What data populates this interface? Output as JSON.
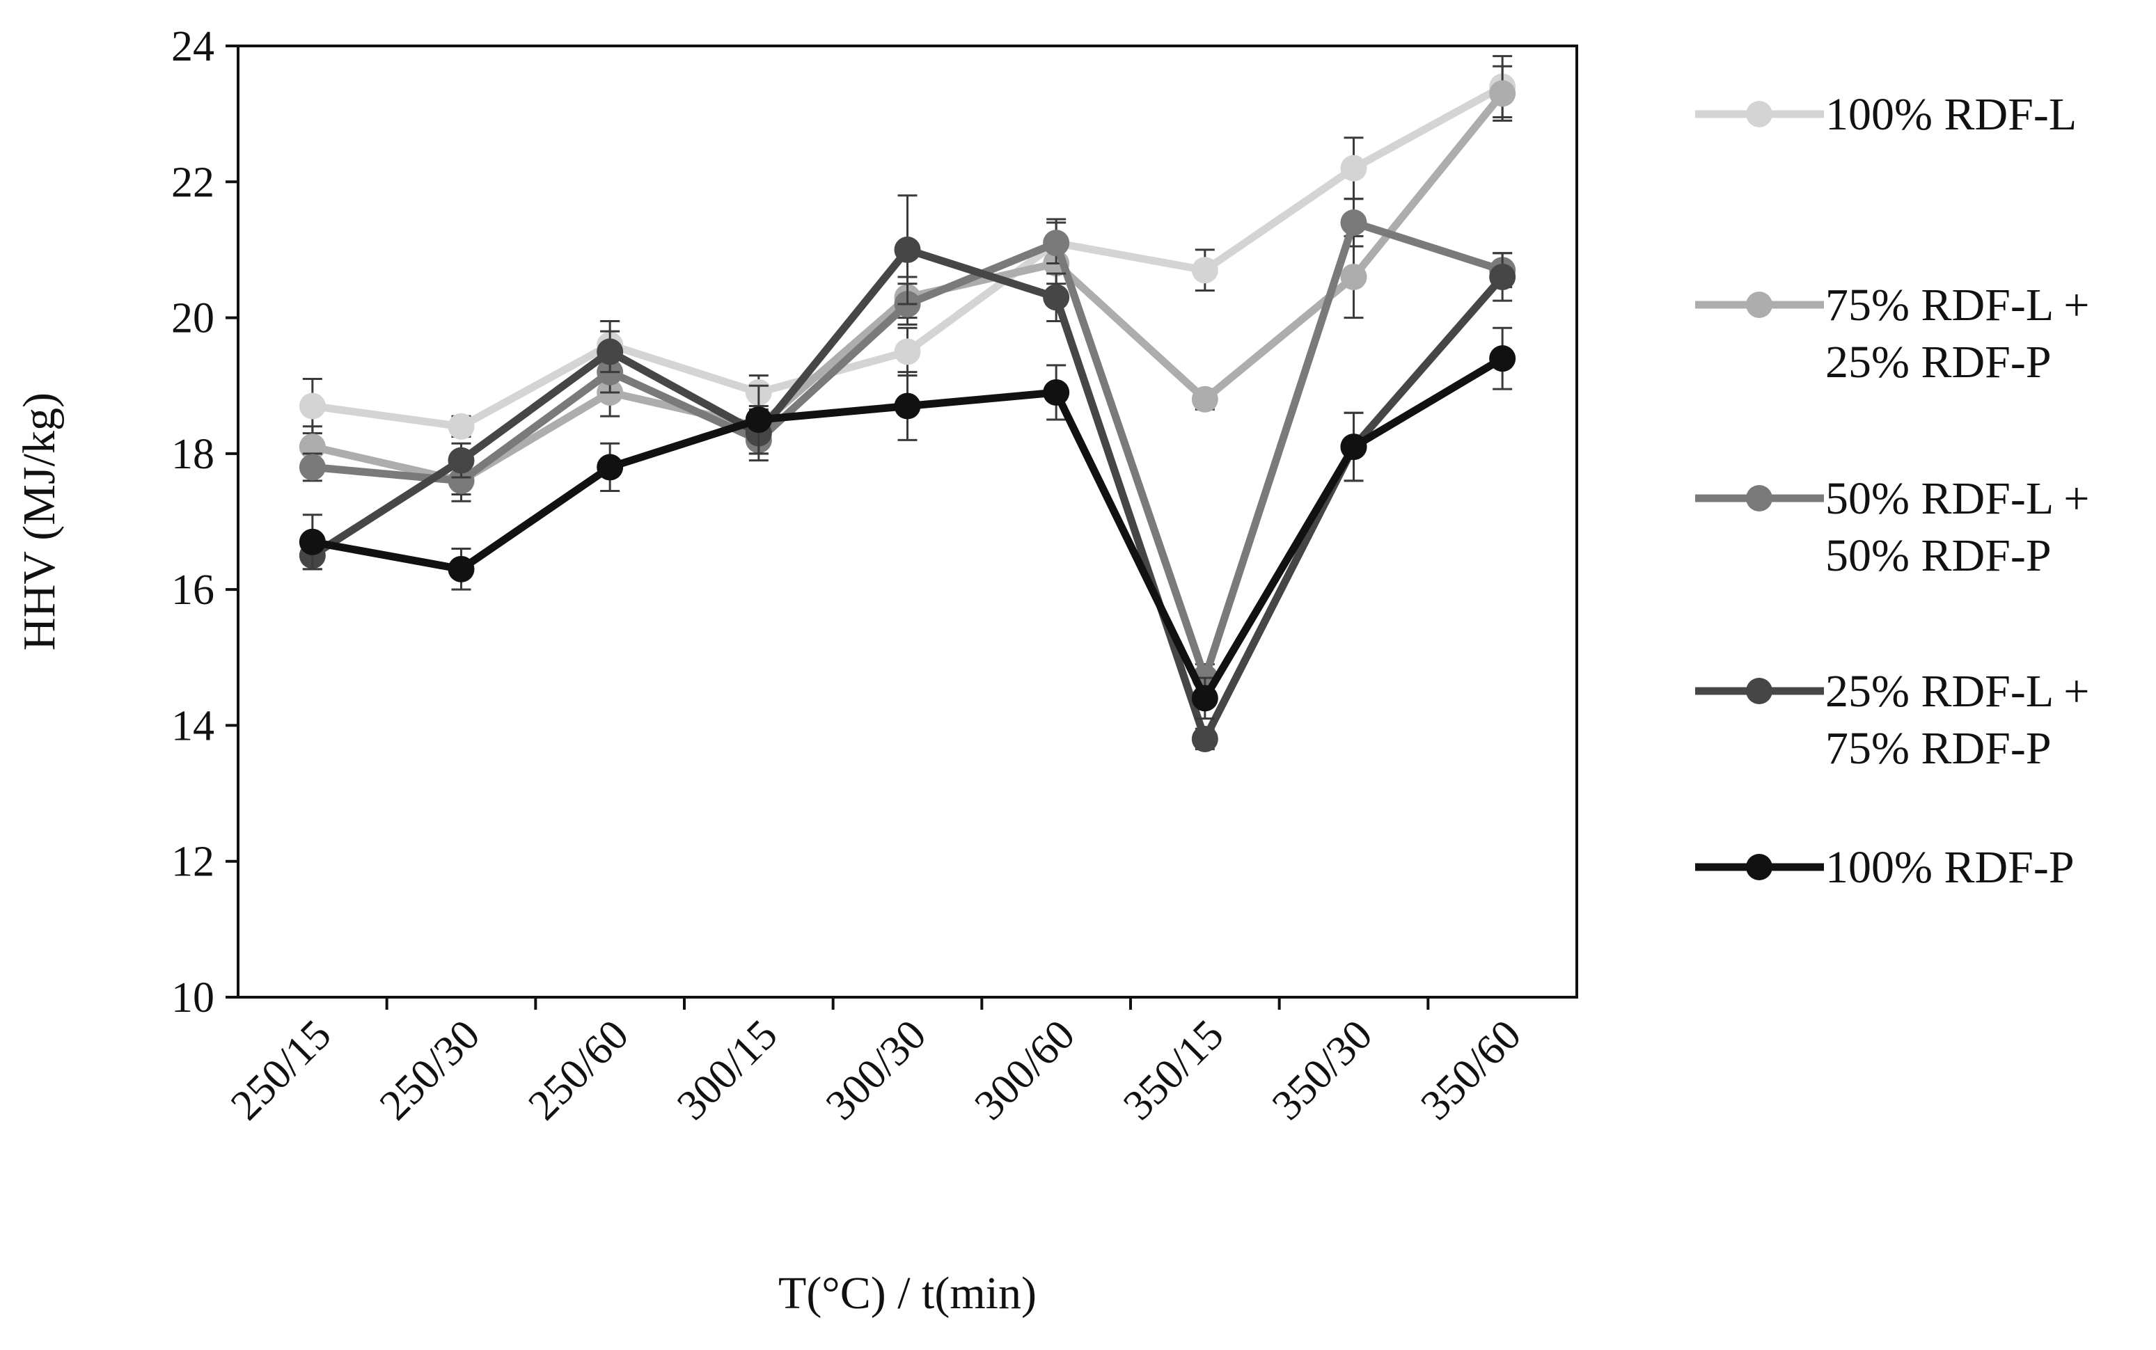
{
  "chart_data": {
    "type": "line",
    "title": "",
    "xlabel": "T(°C) / t(min)",
    "ylabel": "HHV (MJ/kg)",
    "ylim": [
      10,
      24
    ],
    "yticks": [
      10,
      12,
      14,
      16,
      18,
      20,
      22,
      24
    ],
    "grid": false,
    "legend_position": "right",
    "categories": [
      "250/15",
      "250/30",
      "250/60",
      "300/15",
      "300/30",
      "300/60",
      "350/15",
      "350/30",
      "350/60"
    ],
    "series": [
      {
        "name": "100% RDF-L",
        "legend_lines": [
          "100% RDF-L"
        ],
        "color": "#d4d4d4",
        "values": [
          18.7,
          18.4,
          19.6,
          18.9,
          19.5,
          21.1,
          20.7,
          22.2,
          23.4
        ],
        "errors": [
          0.4,
          0.15,
          0.35,
          0.25,
          0.35,
          0.35,
          0.3,
          0.45,
          0.45
        ]
      },
      {
        "name": "75% RDF-L + 25% RDF-P",
        "legend_lines": [
          "75% RDF-L +",
          "25% RDF-P"
        ],
        "color": "#adadad",
        "values": [
          18.1,
          17.6,
          18.9,
          18.4,
          20.3,
          20.8,
          18.8,
          20.6,
          23.3
        ],
        "errors": [
          0.3,
          0.3,
          0.35,
          0.3,
          0.3,
          0.3,
          0.15,
          0.6,
          0.4
        ]
      },
      {
        "name": "50% RDF-L + 50% RDF-P",
        "legend_lines": [
          "50% RDF-L +",
          "50% RDF-P"
        ],
        "color": "#7a7a7a",
        "values": [
          17.8,
          17.6,
          19.2,
          18.2,
          20.2,
          21.1,
          14.7,
          21.4,
          20.7
        ],
        "errors": [
          0.2,
          0.2,
          0.3,
          0.3,
          0.3,
          0.3,
          0.2,
          0.35,
          0.25
        ]
      },
      {
        "name": "25% RDF-L + 75% RDF-P",
        "legend_lines": [
          "25% RDF-L +",
          "75% RDF-P"
        ],
        "color": "#464646",
        "values": [
          16.5,
          17.9,
          19.5,
          18.3,
          21.0,
          20.3,
          13.8,
          18.1,
          20.6
        ],
        "errors": [
          0.2,
          0.25,
          0.3,
          0.3,
          0.8,
          0.35,
          0.15,
          0.5,
          0.35
        ]
      },
      {
        "name": "100% RDF-P",
        "legend_lines": [
          "100% RDF-P"
        ],
        "color": "#111111",
        "values": [
          16.7,
          16.3,
          17.8,
          18.5,
          18.7,
          18.9,
          14.4,
          18.1,
          19.4
        ],
        "errors": [
          0.4,
          0.3,
          0.35,
          0.5,
          0.5,
          0.4,
          0.3,
          0.5,
          0.45
        ]
      }
    ]
  }
}
